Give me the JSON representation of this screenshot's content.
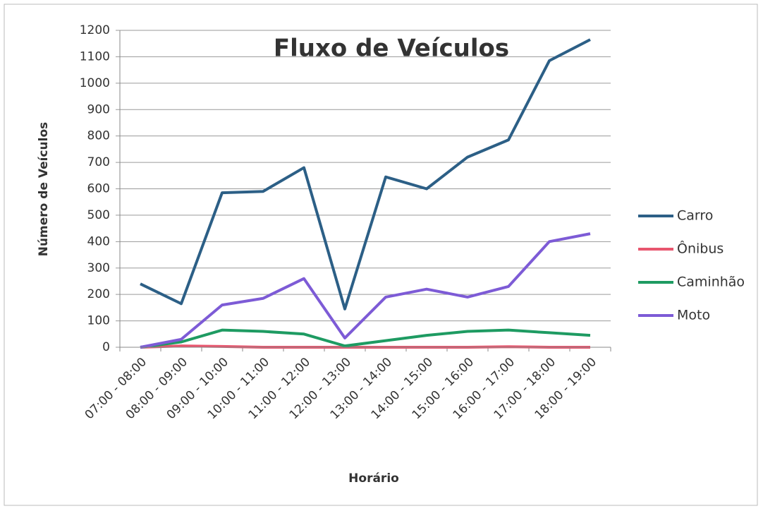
{
  "chart_data": {
    "type": "line",
    "title": "Fluxo de Veículos",
    "x_label": "Horário",
    "y_label": "Número de Veículos",
    "categories": [
      "07:00 - 08:00",
      "08:00 - 09:00",
      "09:00 - 10:00",
      "10:00 - 11:00",
      "11:00 - 12:00",
      "12:00 - 13:00",
      "13:00 - 14:00",
      "14:00 - 15:00",
      "15:00 - 16:00",
      "16:00 - 17:00",
      "17:00 - 18:00",
      "18:00 - 19:00"
    ],
    "series": [
      {
        "name": "Carro",
        "color": "#2c5f86",
        "values": [
          240,
          165,
          585,
          590,
          680,
          145,
          645,
          600,
          720,
          785,
          1085,
          1165
        ]
      },
      {
        "name": "Ônibus",
        "color": "#e8566e",
        "values": [
          0,
          5,
          3,
          0,
          0,
          0,
          0,
          0,
          0,
          2,
          0,
          0
        ]
      },
      {
        "name": "Caminhão",
        "color": "#1e9b62",
        "values": [
          0,
          20,
          65,
          60,
          50,
          5,
          25,
          45,
          60,
          65,
          55,
          45
        ]
      },
      {
        "name": "Moto",
        "color": "#7d5bd6",
        "values": [
          0,
          30,
          160,
          185,
          260,
          35,
          190,
          220,
          190,
          230,
          400,
          430
        ]
      }
    ],
    "ylim": [
      0,
      1200
    ],
    "yticks": [
      0,
      100,
      200,
      300,
      400,
      500,
      600,
      700,
      800,
      900,
      1000,
      1100,
      1200
    ],
    "grid": true,
    "legend": "right"
  }
}
